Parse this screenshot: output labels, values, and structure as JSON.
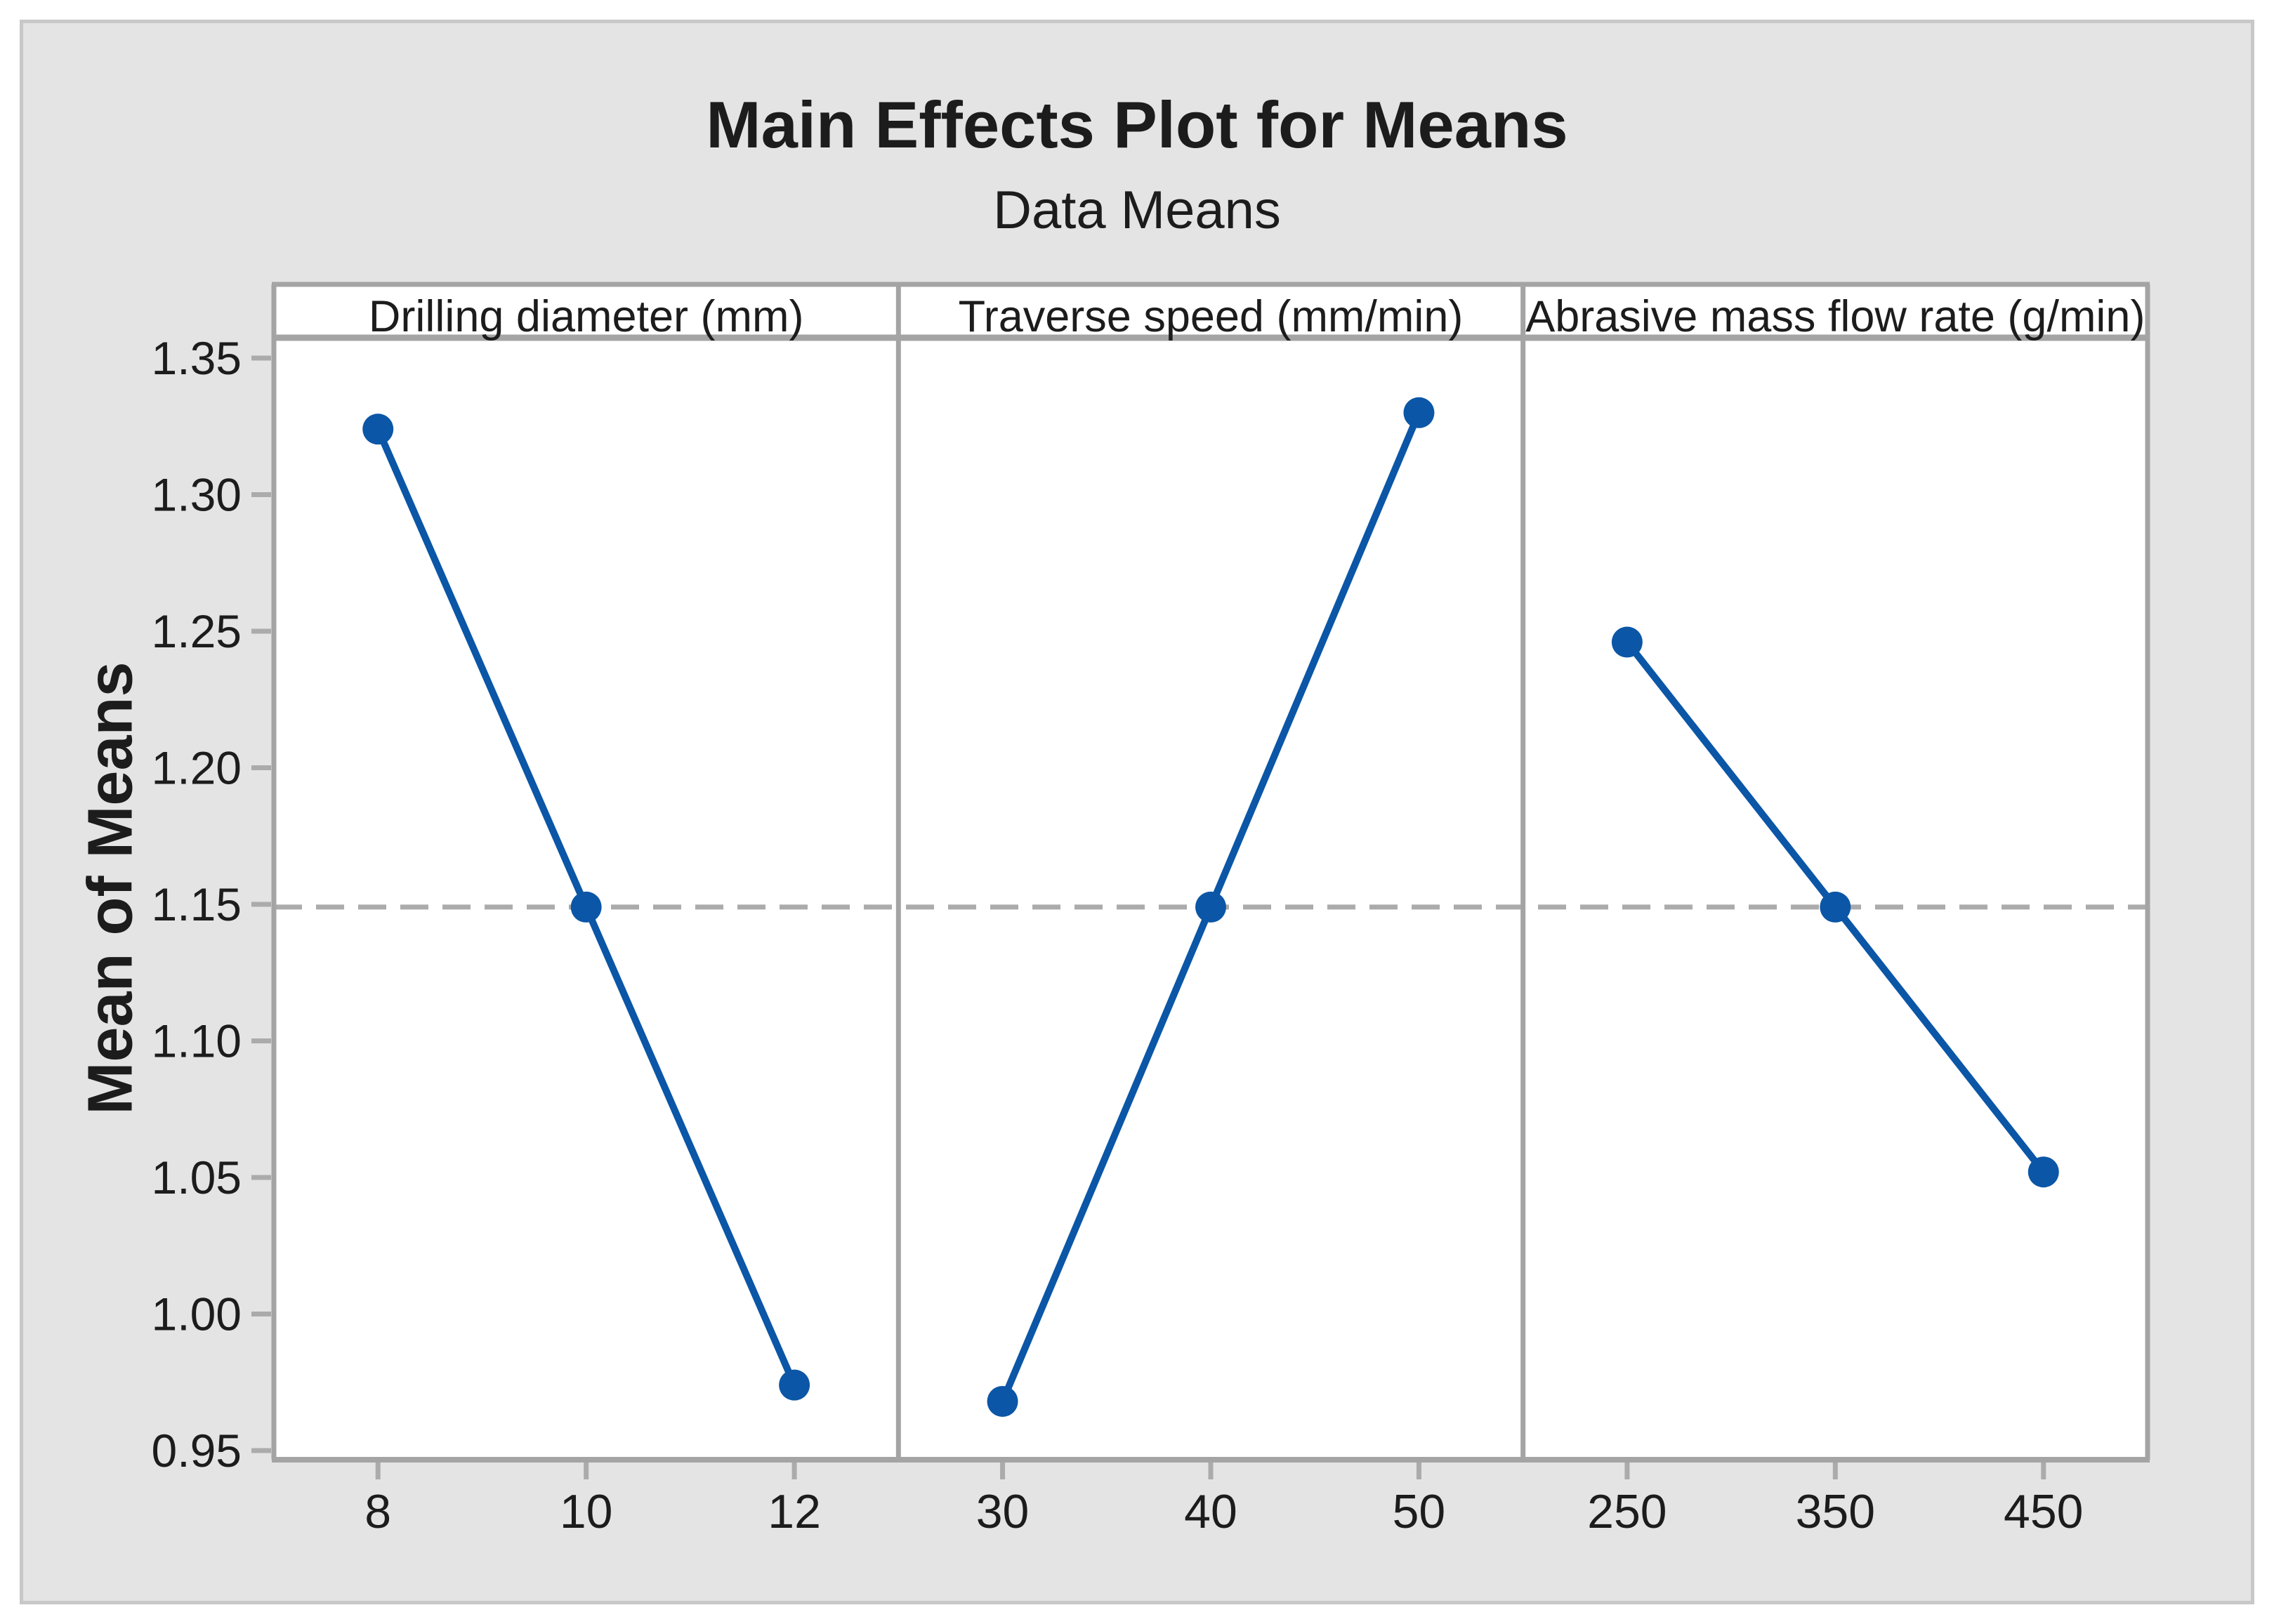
{
  "chart": {
    "title": "Main Effects Plot for Means",
    "subtitle": "Data Means",
    "y_axis_title": "Mean of Means"
  },
  "chart_data": {
    "type": "line",
    "title": "Main Effects Plot for Means",
    "subtitle": "Data Means",
    "ylabel": "Mean of Means",
    "xlabel": "",
    "grid": false,
    "legend": "none",
    "layout": "three panels side-by-side sharing one y-axis",
    "ylim": [
      0.947,
      1.357
    ],
    "yticks": [
      0.95,
      1.0,
      1.05,
      1.1,
      1.15,
      1.2,
      1.25,
      1.3,
      1.35
    ],
    "ytick_labels": [
      "0.95",
      "1.00",
      "1.05",
      "1.10",
      "1.15",
      "1.20",
      "1.25",
      "1.30",
      "1.35"
    ],
    "reference_line": 1.149,
    "reference_line_style": "dashed",
    "panels": [
      {
        "label": "Drilling diameter (mm)",
        "categories": [
          "8",
          "10",
          "12"
        ],
        "values": [
          1.324,
          1.149,
          0.974
        ]
      },
      {
        "label": "Traverse speed (mm/min)",
        "categories": [
          "30",
          "40",
          "50"
        ],
        "values": [
          0.968,
          1.149,
          1.33
        ]
      },
      {
        "label": "Abrasive mass flow rate (g/min)",
        "categories": [
          "250",
          "350",
          "450"
        ],
        "values": [
          1.246,
          1.149,
          1.052
        ]
      }
    ],
    "colors": {
      "series": "#0b56a6",
      "marker": "#0b56a6",
      "reference_line": "#ababab",
      "tick": "#ababab",
      "panel_border": "#a4a4a4",
      "figure_background": "#e4e4e4",
      "plot_background": "#ffffff",
      "outer_border": "#c8c8c8",
      "text": "#1c1c1c"
    }
  }
}
